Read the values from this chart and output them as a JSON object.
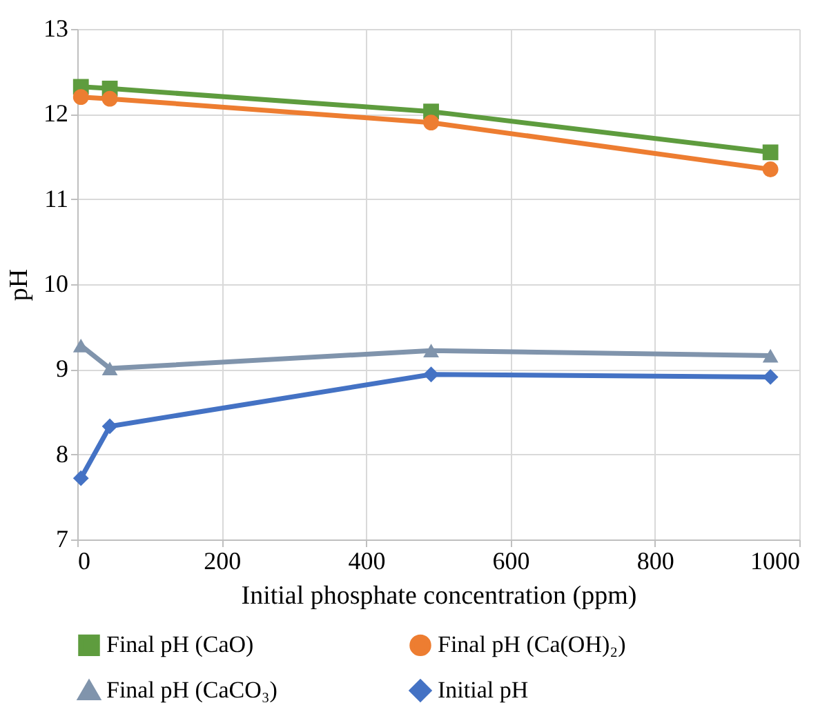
{
  "chart_data": {
    "type": "line",
    "xlabel": "Initial phosphate concentration (ppm)",
    "ylabel": "pH",
    "xlim": [
      0,
      1000
    ],
    "xticks": [
      0,
      200,
      400,
      600,
      800,
      1000
    ],
    "ylim": [
      7,
      13
    ],
    "yticks": [
      7,
      8,
      9,
      10,
      11,
      12,
      13
    ],
    "grid": true,
    "legend": "bottom",
    "line_style": "solid",
    "series": [
      {
        "name": "Final pH (CaO)",
        "color": "#5e9c3e",
        "marker": "square",
        "x": [
          5,
          45,
          490,
          960
        ],
        "values": [
          12.32,
          12.3,
          12.03,
          11.55
        ]
      },
      {
        "name": "Final pH (Ca(OH)₂)",
        "color": "#ed7d31",
        "marker": "circle",
        "x": [
          5,
          45,
          490,
          960
        ],
        "values": [
          12.2,
          12.18,
          11.9,
          11.35
        ]
      },
      {
        "name": "Final pH (CaCO₃)",
        "color": "#8094ac",
        "marker": "triangle",
        "x": [
          5,
          45,
          490,
          960
        ],
        "values": [
          9.28,
          9.01,
          9.22,
          9.16
        ]
      },
      {
        "name": "Initial pH",
        "color": "#4472c4",
        "marker": "diamond",
        "x": [
          5,
          45,
          490,
          960
        ],
        "values": [
          7.72,
          8.33,
          8.94,
          8.91
        ]
      }
    ]
  }
}
